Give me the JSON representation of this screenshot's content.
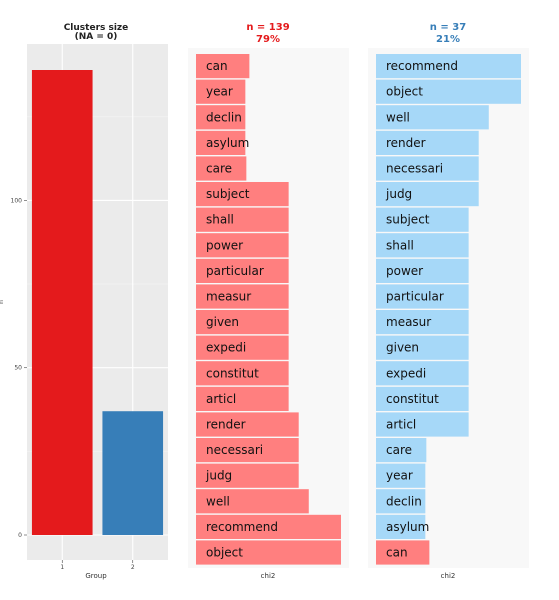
{
  "chart_data": [
    {
      "type": "bar",
      "title": "Clusters size",
      "subtitle": "(NA = 0)",
      "xlabel": "Group",
      "ylabel": "n",
      "categories": [
        "1",
        "2"
      ],
      "values": [
        139,
        37
      ],
      "colors": [
        "#e41a1c",
        "#377eb8"
      ],
      "yticks": [
        0,
        50,
        100
      ],
      "ytick_labels": [
        "0",
        "50",
        "100"
      ],
      "ylim": [
        0,
        145
      ],
      "grid": true
    },
    {
      "type": "bar",
      "orientation": "horizontal",
      "title": "n = 139",
      "subtitle": "79%",
      "title_color": "#e41a1c",
      "xlabel": "chi2",
      "bar_color": "#ff7f7f",
      "categories": [
        "can",
        "year",
        "declin",
        "asylum",
        "care",
        "subject",
        "shall",
        "power",
        "particular",
        "measur",
        "given",
        "expedi",
        "constitut",
        "articl",
        "render",
        "necessari",
        "judg",
        "well",
        "recommend",
        "object"
      ],
      "values": [
        53,
        49,
        49,
        49,
        50,
        92,
        92,
        92,
        92,
        92,
        92,
        92,
        92,
        92,
        102,
        102,
        102,
        112,
        144,
        144
      ]
    },
    {
      "type": "bar",
      "orientation": "horizontal",
      "title": "n = 37",
      "subtitle": "21%",
      "title_color": "#377eb8",
      "xlabel": "chi2",
      "bar_color": "#a6d8f8",
      "last_bar_color": "#ff7f7f",
      "categories": [
        "recommend",
        "object",
        "well",
        "render",
        "necessari",
        "judg",
        "subject",
        "shall",
        "power",
        "particular",
        "measur",
        "given",
        "expedi",
        "constitut",
        "articl",
        "care",
        "year",
        "declin",
        "asylum",
        "can"
      ],
      "values": [
        144,
        144,
        112,
        102,
        102,
        102,
        92,
        92,
        92,
        92,
        92,
        92,
        92,
        92,
        92,
        50,
        49,
        49,
        49,
        53
      ]
    }
  ]
}
